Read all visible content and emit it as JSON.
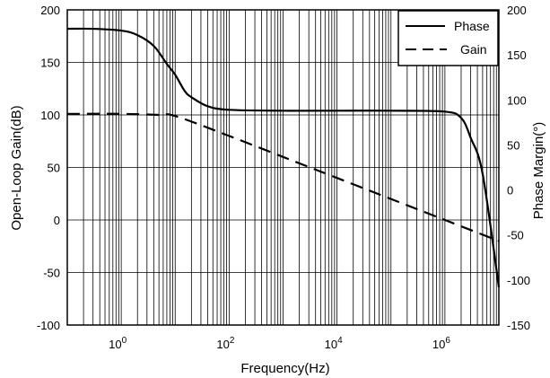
{
  "chart_data": {
    "type": "line",
    "xlabel": "Frequency(Hz)",
    "ylabel_left": "Open-Loop Gain(dB)",
    "ylabel_right": "Phase Margin(°)",
    "x_scale": "log",
    "xlim": [
      0.1,
      10000000
    ],
    "ylim_left": [
      -100,
      200
    ],
    "ylim_right": [
      -150,
      200
    ],
    "left_ticks": [
      "200",
      "150",
      "100",
      "50",
      "0",
      "-50",
      "-100"
    ],
    "right_ticks": [
      "200",
      "150",
      "100",
      "50",
      "0",
      "-50",
      "-100",
      "-150"
    ],
    "x_tick_labels": [
      {
        "base": "10",
        "exp": "0",
        "value": 1
      },
      {
        "base": "10",
        "exp": "2",
        "value": 100
      },
      {
        "base": "10",
        "exp": "4",
        "value": 10000
      },
      {
        "base": "10",
        "exp": "6",
        "value": 1000000
      }
    ],
    "grid": true,
    "legend_position": "top-right",
    "series": [
      {
        "name": "Phase",
        "axis": "right",
        "style": "solid",
        "color": "#000000",
        "x": [
          0.1,
          0.3,
          1,
          2,
          4,
          7,
          10,
          15,
          20,
          40,
          100,
          1000,
          10000,
          100000,
          1000000,
          2000000,
          3000000,
          5000000,
          10000000
        ],
        "y": [
          179,
          179,
          177,
          172,
          160,
          140,
          128,
          110,
          103,
          93,
          89,
          88,
          88,
          88,
          87,
          80,
          58,
          18,
          -108
        ]
      },
      {
        "name": "Gain",
        "axis": "left",
        "style": "dashed",
        "color": "#000000",
        "x": [
          0.1,
          1,
          5,
          10,
          100,
          1000,
          10000,
          100000,
          1000000,
          10000000
        ],
        "y": [
          101,
          101,
          100,
          99,
          80,
          60,
          40,
          20,
          0,
          -20
        ]
      }
    ]
  }
}
